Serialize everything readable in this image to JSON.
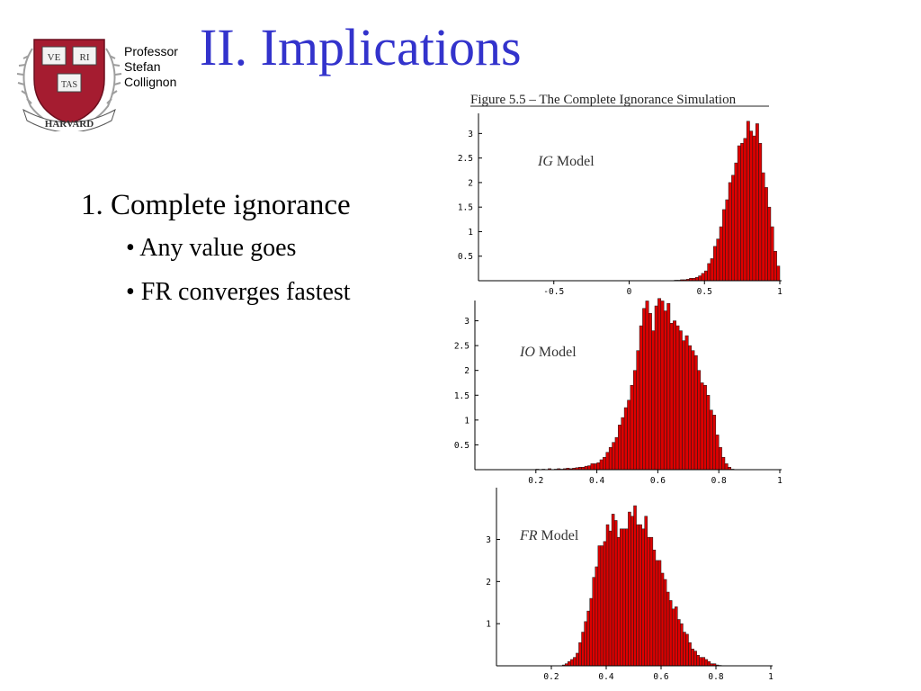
{
  "header": {
    "title": "II. Implications",
    "author_lines": [
      "Professor",
      "Stefan",
      "Collignon"
    ]
  },
  "logo": {
    "name": "harvard-shield",
    "text": [
      "VE",
      "RI",
      "TAS",
      "HARVARD"
    ],
    "colors": {
      "shield": "#a51c30",
      "book": "#f3f3f3",
      "wreath": "#9e9e9e"
    }
  },
  "content": {
    "heading": "1. Complete ignorance",
    "bullets": [
      "• Any value goes",
      "• FR converges fastest"
    ]
  },
  "figure": {
    "caption": "Figure 5.5 – The Complete Ignorance Simulation"
  },
  "colors": {
    "title": "#3333cc",
    "bar": "#dd0000"
  },
  "chart_data": [
    {
      "type": "bar",
      "label_italic": "IG",
      "label_rest": " Model",
      "xlim": [
        -1,
        1
      ],
      "ylim": [
        0,
        3.3
      ],
      "x_ticks": [
        -0.5,
        0,
        0.5,
        1
      ],
      "x_tick_labels": [
        "-0.5",
        "0",
        "0.5",
        "1"
      ],
      "y_ticks": [
        0.5,
        1,
        1.5,
        2,
        2.5,
        3
      ],
      "y_tick_labels": [
        "0.5",
        "1",
        "1.5",
        "2",
        "2.5",
        "3"
      ],
      "bin_start": 0.3,
      "bin_width": 0.02,
      "values": [
        0.01,
        0.01,
        0.02,
        0.02,
        0.03,
        0.05,
        0.05,
        0.07,
        0.1,
        0.15,
        0.2,
        0.35,
        0.45,
        0.7,
        0.85,
        1.1,
        1.45,
        1.65,
        2.0,
        2.15,
        2.4,
        2.75,
        2.8,
        2.9,
        3.25,
        3.05,
        2.95,
        3.2,
        2.8,
        2.2,
        1.9,
        1.5,
        1.1,
        0.6,
        0.3
      ]
    },
    {
      "type": "bar",
      "label_italic": "IO",
      "label_rest": " Model",
      "xlim": [
        0,
        1
      ],
      "ylim": [
        0,
        3.3
      ],
      "x_ticks": [
        0.2,
        0.4,
        0.6,
        0.8,
        1
      ],
      "x_tick_labels": [
        "0.2",
        "0.4",
        "0.6",
        "0.8",
        "1"
      ],
      "y_ticks": [
        0.5,
        1,
        1.5,
        2,
        2.5,
        3
      ],
      "y_tick_labels": [
        "0.5",
        "1",
        "1.5",
        "2",
        "2.5",
        "3"
      ],
      "bin_start": 0.2,
      "bin_width": 0.01,
      "values": [
        0.01,
        0,
        0.01,
        0,
        0.02,
        0,
        0.01,
        0.02,
        0.01,
        0.02,
        0.03,
        0.02,
        0.03,
        0.04,
        0.05,
        0.05,
        0.07,
        0.08,
        0.12,
        0.12,
        0.14,
        0.2,
        0.25,
        0.35,
        0.45,
        0.55,
        0.65,
        0.9,
        1.05,
        1.25,
        1.4,
        1.7,
        2.0,
        2.4,
        2.9,
        3.25,
        3.4,
        3.15,
        2.8,
        3.3,
        3.45,
        3.4,
        3.2,
        3.35,
        2.95,
        3.0,
        2.9,
        2.8,
        2.6,
        2.7,
        2.5,
        2.4,
        2.3,
        2.0,
        1.75,
        1.7,
        1.5,
        1.2,
        1.1,
        0.7,
        0.45,
        0.25,
        0.12,
        0.05,
        0.01
      ]
    },
    {
      "type": "bar",
      "label_italic": "FR",
      "label_rest": " Model",
      "xlim": [
        0,
        1
      ],
      "ylim": [
        0,
        4.1
      ],
      "x_ticks": [
        0.2,
        0.4,
        0.6,
        0.8,
        1
      ],
      "x_tick_labels": [
        "0.2",
        "0.4",
        "0.6",
        "0.8",
        "1"
      ],
      "y_ticks": [
        1,
        2,
        3
      ],
      "y_tick_labels": [
        "1",
        "2",
        "3"
      ],
      "bin_start": 0.24,
      "bin_width": 0.01,
      "values": [
        0.02,
        0.05,
        0.1,
        0.15,
        0.2,
        0.3,
        0.55,
        0.8,
        1.05,
        1.3,
        1.6,
        2.1,
        2.35,
        2.85,
        2.85,
        2.95,
        3.35,
        3.2,
        3.6,
        3.45,
        3.05,
        3.25,
        3.25,
        3.25,
        3.65,
        3.55,
        3.8,
        3.35,
        3.35,
        3.25,
        3.55,
        3.05,
        3.05,
        2.75,
        2.5,
        2.5,
        2.2,
        2.05,
        1.75,
        1.55,
        1.35,
        1.4,
        1.1,
        1.0,
        0.8,
        0.75,
        0.55,
        0.4,
        0.35,
        0.25,
        0.2,
        0.2,
        0.15,
        0.1,
        0.05,
        0.05,
        0.02,
        0.01
      ]
    }
  ]
}
